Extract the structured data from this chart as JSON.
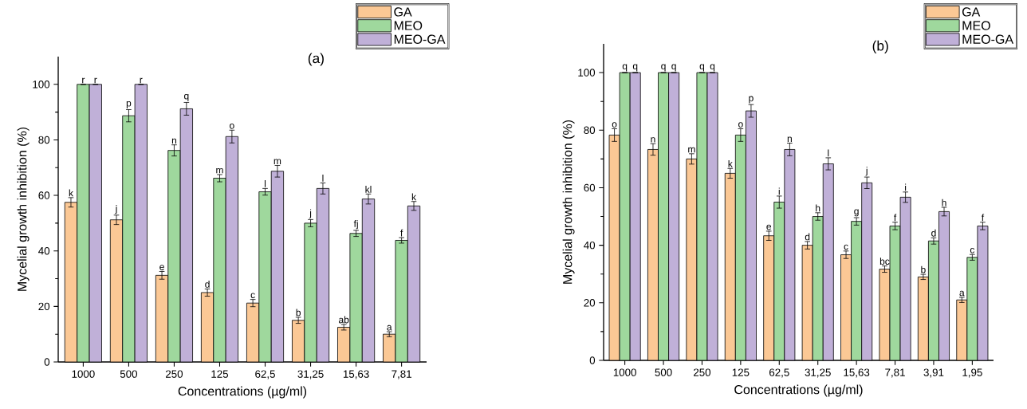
{
  "chart_data": [
    {
      "type": "bar",
      "title": "(a)",
      "xlabel": "Concentrations (µg/ml)",
      "ylabel": "Mycelial growth inhibition (%)",
      "categories": [
        "1000",
        "500",
        "250",
        "125",
        "62,5",
        "31,25",
        "15,63",
        "7,81"
      ],
      "ylim": [
        0,
        110
      ],
      "yticks": [
        0,
        20,
        40,
        60,
        80,
        100
      ],
      "legend": "top right",
      "grid": false,
      "series": [
        {
          "name": "GA",
          "color": "#fbc895",
          "values": [
            57.5,
            51.2,
            31.2,
            25.0,
            21.2,
            15.0,
            12.5,
            10.0
          ],
          "errors": [
            1.7,
            1.7,
            1.4,
            1.3,
            1.3,
            1.1,
            1.0,
            0.9
          ],
          "value_labels": [
            "k",
            "j",
            "e",
            "d",
            "c",
            "b",
            "ab",
            "a"
          ]
        },
        {
          "name": "MEO",
          "color": "#9fd89d",
          "values": [
            100,
            88.7,
            76.2,
            66.2,
            61.3,
            50.0,
            46.3,
            43.8
          ],
          "errors": [
            null,
            2.2,
            2.0,
            1.3,
            1.2,
            1.3,
            1.1,
            1.0
          ],
          "value_labels": [
            "r",
            "p",
            "n",
            "m",
            "l",
            "j",
            "fj",
            "f"
          ]
        },
        {
          "name": "MEO-GA",
          "color": "#c0b0d8",
          "values": [
            100,
            100,
            91.2,
            81.2,
            68.7,
            62.5,
            58.7,
            56.2
          ],
          "errors": [
            null,
            null,
            2.3,
            2.3,
            2.1,
            2.0,
            1.8,
            1.6
          ],
          "value_labels": [
            "r",
            "r",
            "q",
            "o",
            "m",
            "l",
            "kl",
            "k"
          ]
        }
      ]
    },
    {
      "type": "bar",
      "title": "(b)",
      "xlabel": "Concentrations (µg/ml)",
      "ylabel": "Mycelial growth inhibition (%)",
      "categories": [
        "1000",
        "500",
        "250",
        "125",
        "62,5",
        "31,25",
        "15,63",
        "7,81",
        "3,91",
        "1,95"
      ],
      "ylim": [
        0,
        110
      ],
      "yticks": [
        0,
        20,
        40,
        60,
        80,
        100
      ],
      "legend": "top right",
      "grid": false,
      "series": [
        {
          "name": "GA",
          "color": "#fbc895",
          "values": [
            78.3,
            73.3,
            70.0,
            65.0,
            43.3,
            40.0,
            36.7,
            31.7,
            29.0,
            21.0
          ],
          "errors": [
            2.2,
            2.0,
            1.8,
            1.7,
            1.6,
            1.3,
            1.3,
            1.1,
            0.9,
            0.9
          ],
          "value_labels": [
            "o",
            "n",
            "m",
            "k",
            "e",
            "d",
            "c",
            "bc",
            "b",
            "a"
          ]
        },
        {
          "name": "MEO",
          "color": "#9fd89d",
          "values": [
            100,
            100,
            100,
            78.3,
            55.0,
            50.0,
            48.3,
            46.7,
            41.5,
            35.8
          ],
          "errors": [
            null,
            null,
            null,
            2.2,
            2.1,
            1.3,
            1.3,
            1.3,
            1.1,
            1.0
          ],
          "value_labels": [
            "q",
            "q",
            "q",
            "o",
            "i",
            "h",
            "g",
            "f",
            "d",
            "c"
          ]
        },
        {
          "name": "MEO-GA",
          "color": "#c0b0d8",
          "values": [
            100,
            100,
            100,
            86.7,
            73.3,
            68.3,
            61.7,
            56.7,
            51.7,
            46.7
          ],
          "errors": [
            null,
            null,
            null,
            2.2,
            2.2,
            2.1,
            2.0,
            1.8,
            1.5,
            1.3
          ],
          "value_labels": [
            "q",
            "q",
            "q",
            "p",
            "n",
            "l",
            "j",
            "i",
            "h",
            "f"
          ]
        }
      ]
    }
  ]
}
